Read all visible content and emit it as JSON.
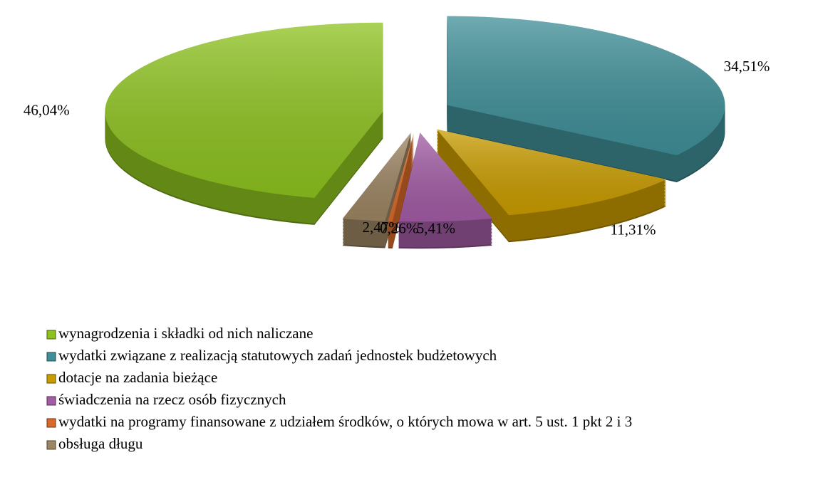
{
  "chart_data": {
    "type": "pie",
    "categories": [
      "wynagrodzenia i składki od nich naliczane",
      "wydatki związane z realizacją statutowych zadań jednostek budżetowych",
      "dotacje na zadania bieżące",
      "świadczenia na rzecz osób fizycznych",
      "wydatki na programy finansowane z udziałem środków, o których mowa w art. 5 ust. 1 pkt 2 i 3",
      "obsługa długu"
    ],
    "values": [
      46.04,
      34.51,
      11.31,
      5.41,
      0.26,
      2.47
    ],
    "value_labels": [
      "46,04%",
      "34,51%",
      "11,31%",
      "5,41%",
      "0,26%",
      "2,47%"
    ],
    "colors": [
      "#8dc21f",
      "#3f8f98",
      "#c99c00",
      "#a25ca4",
      "#d8692a",
      "#9d8563"
    ],
    "legend": "bottom-left"
  }
}
